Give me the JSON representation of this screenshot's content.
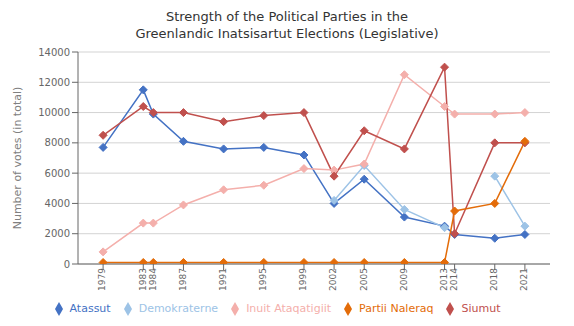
{
  "chart_data": {
    "type": "line",
    "title": "Strength of the Political Parties in the\nGreenlandic Inatsisartut Elections (Legislative)",
    "ylabel": "Number of votes (in total)",
    "x": [
      1979,
      1983,
      1984,
      1987,
      1991,
      1995,
      1999,
      2002,
      2005,
      2009,
      2013,
      2014,
      2018,
      2021
    ],
    "series": [
      {
        "name": "Atassut",
        "color": "#4472C4",
        "values": [
          7700,
          11500,
          9900,
          8100,
          7600,
          7700,
          7200,
          4000,
          5600,
          3100,
          2500,
          1950,
          1700,
          1950
        ]
      },
      {
        "name": "Demokraterne",
        "color": "#9DC3E6",
        "values": [
          null,
          null,
          null,
          null,
          null,
          null,
          null,
          4200,
          6500,
          3600,
          2400,
          null,
          5800,
          2500
        ]
      },
      {
        "name": "Inuit Ataqatigiit",
        "color": "#F4AFAB",
        "values": [
          800,
          2700,
          2700,
          3900,
          4900,
          5200,
          6300,
          6200,
          6600,
          12500,
          10400,
          9900,
          9900,
          10000
        ]
      },
      {
        "name": "Siumut",
        "color": "#C0504D",
        "values": [
          8500,
          10400,
          10000,
          10000,
          9400,
          9800,
          10000,
          5800,
          8800,
          7600,
          13000,
          2000,
          8000,
          8000
        ]
      },
      {
        "name": "Partii Naleraq",
        "color": "#E36C09",
        "values": [
          100,
          100,
          100,
          100,
          100,
          100,
          100,
          100,
          100,
          100,
          100,
          3500,
          4000,
          8100
        ]
      }
    ],
    "xlim": [
      1976.5,
      2023.5
    ],
    "xticks": [
      1979,
      1983,
      1984,
      1987,
      1991,
      1995,
      1999,
      2002,
      2005,
      2009,
      2013,
      2014,
      2018,
      2021
    ],
    "ylim": [
      0,
      14000
    ],
    "yticks": [
      0,
      2000,
      4000,
      6000,
      8000,
      10000,
      12000,
      14000
    ],
    "grid": true,
    "legend": "bottom",
    "marker": "diamond"
  }
}
